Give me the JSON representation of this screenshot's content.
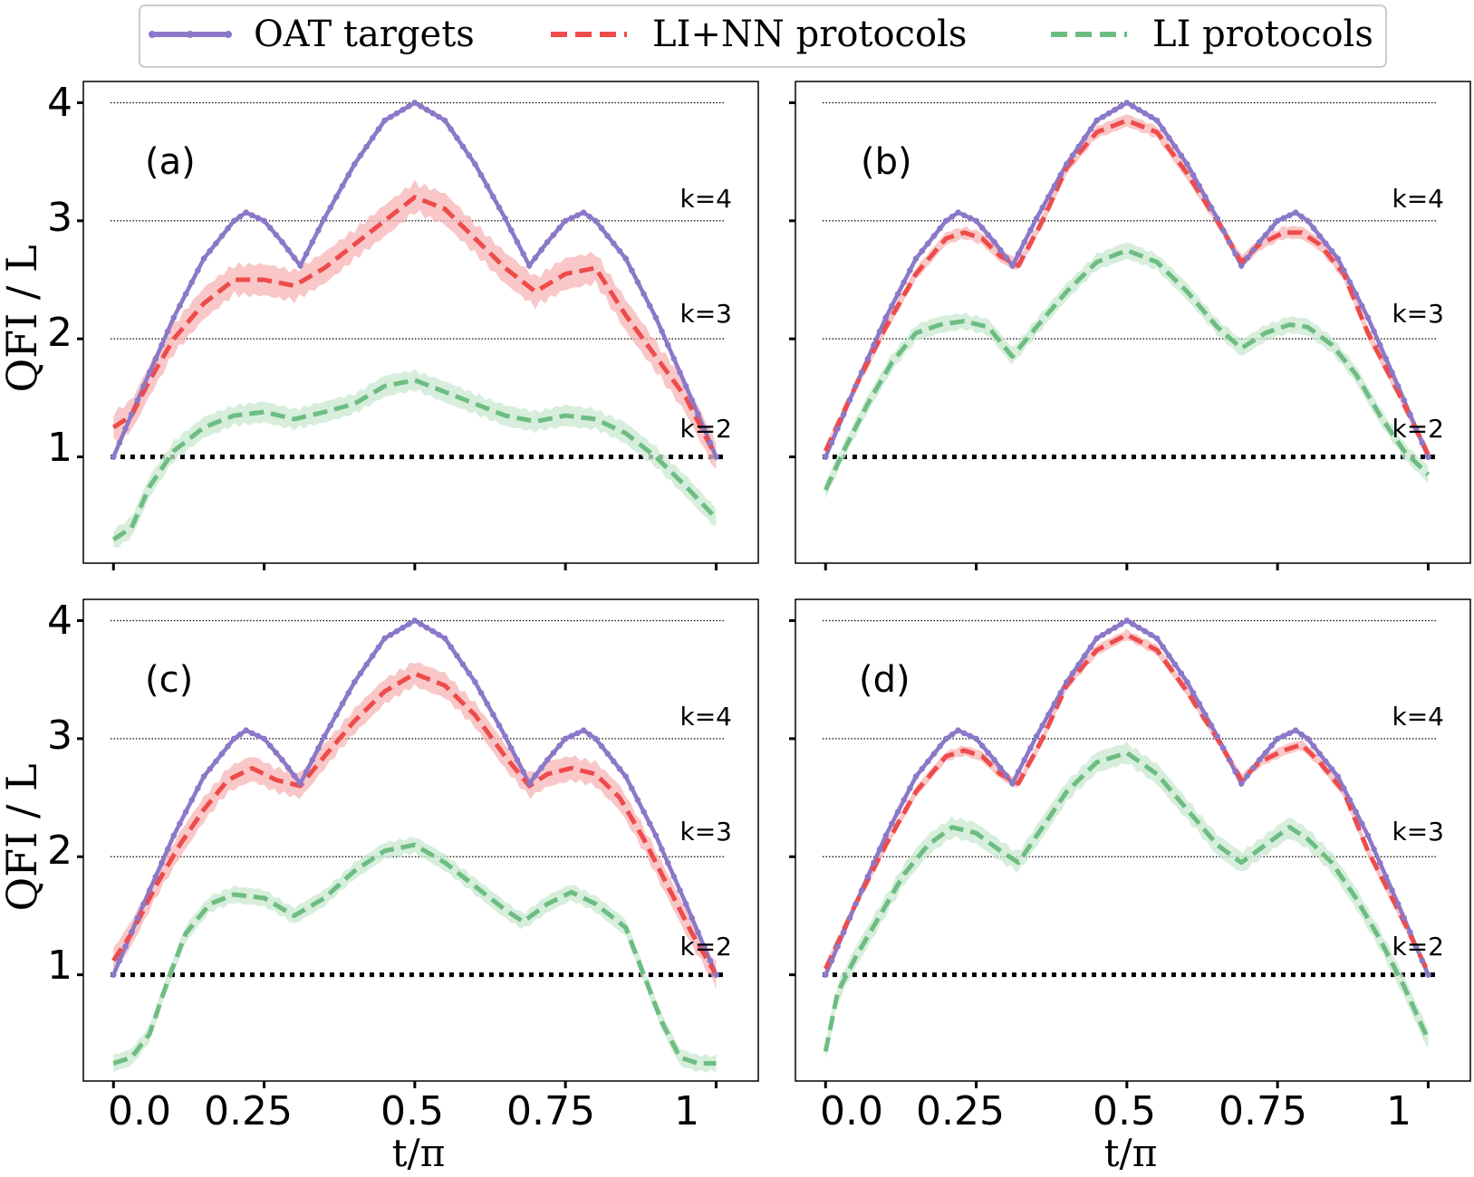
{
  "colors": {
    "oat": "#8c78c8",
    "linn": "#ee4b4b",
    "li": "#6dbd82",
    "linn_band": "#f7b4b4",
    "li_band": "#c8e8cf"
  },
  "legend": {
    "oat": "OAT targets",
    "linn": "LI+NN protocols",
    "li": "LI protocols"
  },
  "chart_data": {
    "type": "line",
    "xlabel": "t/π",
    "ylabel": "QFI / L",
    "xlim": [
      -0.05,
      1.07
    ],
    "ylim": [
      0.1,
      4.18
    ],
    "x_ticks": [
      0.0,
      0.25,
      0.5,
      0.75,
      1.0
    ],
    "x_tick_labels": [
      "0.0",
      "0.25",
      "0.5",
      "0.75",
      "1"
    ],
    "y_ticks": [
      1,
      2,
      3,
      4
    ],
    "y_tick_labels": [
      "1",
      "2",
      "3",
      "4"
    ],
    "reference_lines": [
      {
        "y": 1,
        "label": "k=2",
        "style": "thick-dotted"
      },
      {
        "y": 2,
        "label": "k=3",
        "style": "thin-dotted"
      },
      {
        "y": 3,
        "label": "k=4",
        "style": "thin-dotted"
      },
      {
        "y": 4,
        "label": "",
        "style": "thin-dotted"
      }
    ],
    "oat_target": {
      "x": [
        0,
        0.05,
        0.1,
        0.15,
        0.2,
        0.22,
        0.25,
        0.28,
        0.31,
        0.35,
        0.4,
        0.45,
        0.5,
        0.55,
        0.6,
        0.65,
        0.69,
        0.72,
        0.75,
        0.78,
        0.8,
        0.85,
        0.9,
        0.95,
        1.0
      ],
      "y": [
        1.0,
        1.6,
        2.18,
        2.68,
        3.0,
        3.07,
        3.0,
        2.82,
        2.62,
        3.02,
        3.48,
        3.85,
        4.0,
        3.85,
        3.48,
        3.02,
        2.62,
        2.82,
        3.0,
        3.07,
        3.0,
        2.68,
        2.18,
        1.6,
        1.0
      ]
    },
    "panels": [
      {
        "label": "(a)",
        "series": [
          {
            "name": "LI+NN protocols",
            "x": [
              0,
              0.03,
              0.06,
              0.1,
              0.15,
              0.2,
              0.25,
              0.3,
              0.35,
              0.4,
              0.45,
              0.5,
              0.55,
              0.6,
              0.65,
              0.7,
              0.75,
              0.8,
              0.85,
              0.9,
              0.95,
              1.0
            ],
            "y": [
              1.25,
              1.35,
              1.65,
              2.0,
              2.3,
              2.5,
              2.5,
              2.45,
              2.6,
              2.8,
              3.0,
              3.2,
              3.1,
              2.85,
              2.6,
              2.4,
              2.55,
              2.6,
              2.2,
              1.85,
              1.5,
              1.0
            ],
            "band": 0.15
          },
          {
            "name": "LI protocols",
            "x": [
              0,
              0.03,
              0.06,
              0.1,
              0.15,
              0.2,
              0.25,
              0.3,
              0.35,
              0.4,
              0.45,
              0.5,
              0.55,
              0.6,
              0.65,
              0.7,
              0.75,
              0.8,
              0.85,
              0.9,
              0.95,
              1.0
            ],
            "y": [
              0.3,
              0.4,
              0.75,
              1.05,
              1.25,
              1.35,
              1.38,
              1.32,
              1.38,
              1.45,
              1.6,
              1.65,
              1.55,
              1.45,
              1.35,
              1.3,
              1.35,
              1.32,
              1.2,
              1.0,
              0.75,
              0.48
            ],
            "band": 0.1
          }
        ]
      },
      {
        "label": "(b)",
        "series": [
          {
            "name": "LI+NN protocols",
            "x": [
              0,
              0.05,
              0.1,
              0.15,
              0.2,
              0.23,
              0.26,
              0.29,
              0.32,
              0.36,
              0.4,
              0.45,
              0.5,
              0.55,
              0.6,
              0.65,
              0.69,
              0.72,
              0.76,
              0.79,
              0.82,
              0.86,
              0.9,
              0.95,
              1.0
            ],
            "y": [
              1.05,
              1.6,
              2.1,
              2.55,
              2.85,
              2.9,
              2.85,
              2.7,
              2.62,
              3.0,
              3.45,
              3.75,
              3.85,
              3.75,
              3.4,
              3.0,
              2.65,
              2.8,
              2.9,
              2.9,
              2.8,
              2.55,
              2.05,
              1.55,
              1.02
            ],
            "band": 0.06
          },
          {
            "name": "LI protocols",
            "x": [
              0,
              0.03,
              0.07,
              0.11,
              0.15,
              0.19,
              0.23,
              0.27,
              0.31,
              0.35,
              0.4,
              0.45,
              0.5,
              0.55,
              0.6,
              0.65,
              0.69,
              0.73,
              0.77,
              0.8,
              0.84,
              0.88,
              0.92,
              0.96,
              1.0
            ],
            "y": [
              0.72,
              1.05,
              1.45,
              1.8,
              2.05,
              2.12,
              2.15,
              2.1,
              1.85,
              2.1,
              2.4,
              2.65,
              2.75,
              2.65,
              2.4,
              2.1,
              1.92,
              2.05,
              2.12,
              2.1,
              1.95,
              1.7,
              1.35,
              1.05,
              0.85
            ],
            "band": 0.08
          }
        ]
      },
      {
        "label": "(c)",
        "series": [
          {
            "name": "LI+NN protocols",
            "x": [
              0,
              0.03,
              0.07,
              0.11,
              0.15,
              0.19,
              0.23,
              0.27,
              0.31,
              0.35,
              0.4,
              0.45,
              0.5,
              0.55,
              0.6,
              0.65,
              0.69,
              0.72,
              0.76,
              0.8,
              0.84,
              0.88,
              0.92,
              0.96,
              1.0
            ],
            "y": [
              1.12,
              1.35,
              1.75,
              2.1,
              2.4,
              2.65,
              2.75,
              2.65,
              2.6,
              2.85,
              3.15,
              3.4,
              3.55,
              3.45,
              3.2,
              2.85,
              2.6,
              2.7,
              2.75,
              2.7,
              2.5,
              2.15,
              1.75,
              1.35,
              1.0
            ],
            "band": 0.12
          },
          {
            "name": "LI protocols",
            "x": [
              0,
              0.03,
              0.06,
              0.09,
              0.12,
              0.16,
              0.2,
              0.25,
              0.3,
              0.35,
              0.4,
              0.45,
              0.5,
              0.55,
              0.6,
              0.65,
              0.68,
              0.72,
              0.76,
              0.8,
              0.85,
              0.88,
              0.91,
              0.94,
              0.97,
              1.0
            ],
            "y": [
              0.25,
              0.3,
              0.5,
              0.95,
              1.35,
              1.6,
              1.68,
              1.65,
              1.5,
              1.65,
              1.88,
              2.05,
              2.1,
              1.95,
              1.75,
              1.55,
              1.45,
              1.6,
              1.7,
              1.6,
              1.4,
              1.0,
              0.6,
              0.3,
              0.25,
              0.25
            ],
            "band": 0.08
          }
        ]
      },
      {
        "label": "(d)",
        "series": [
          {
            "name": "LI+NN protocols",
            "x": [
              0,
              0.05,
              0.1,
              0.15,
              0.2,
              0.23,
              0.26,
              0.29,
              0.32,
              0.36,
              0.4,
              0.45,
              0.5,
              0.55,
              0.6,
              0.65,
              0.69,
              0.72,
              0.76,
              0.79,
              0.82,
              0.86,
              0.9,
              0.95,
              1.0
            ],
            "y": [
              1.05,
              1.6,
              2.1,
              2.55,
              2.85,
              2.9,
              2.85,
              2.7,
              2.62,
              3.0,
              3.45,
              3.75,
              3.88,
              3.75,
              3.4,
              3.0,
              2.65,
              2.8,
              2.9,
              2.95,
              2.8,
              2.55,
              2.05,
              1.55,
              1.02
            ],
            "band": 0.05
          },
          {
            "name": "LI protocols",
            "x": [
              0,
              0.02,
              0.05,
              0.09,
              0.13,
              0.17,
              0.21,
              0.25,
              0.29,
              0.32,
              0.36,
              0.4,
              0.45,
              0.5,
              0.55,
              0.6,
              0.65,
              0.69,
              0.73,
              0.77,
              0.8,
              0.84,
              0.88,
              0.92,
              0.96,
              1.0
            ],
            "y": [
              0.35,
              0.85,
              1.15,
              1.5,
              1.85,
              2.1,
              2.25,
              2.2,
              2.05,
              1.95,
              2.25,
              2.55,
              2.8,
              2.88,
              2.7,
              2.4,
              2.1,
              1.95,
              2.1,
              2.25,
              2.15,
              1.95,
              1.65,
              1.3,
              0.9,
              0.45
            ],
            "band": 0.1
          }
        ]
      }
    ]
  }
}
